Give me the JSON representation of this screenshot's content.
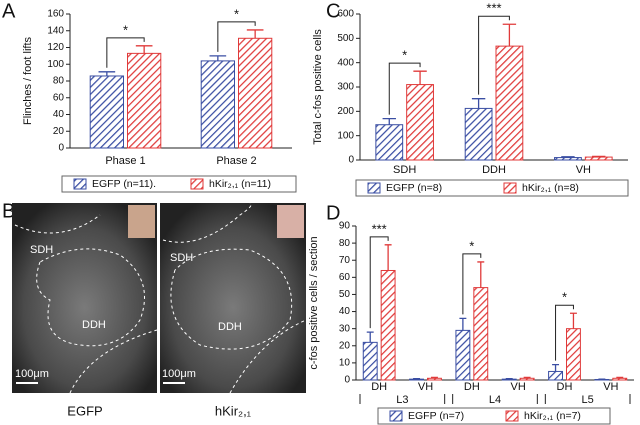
{
  "chart_data": [
    {
      "type": "bar",
      "panel": "A",
      "ylabel": "Flinches / foot lifts",
      "categories": [
        "Phase 1",
        "Phase 2"
      ],
      "series": [
        {
          "name": "EGFP (n=11).",
          "color": "#3a4ea3",
          "values": [
            86,
            104
          ],
          "errors": [
            5,
            6
          ]
        },
        {
          "name": "hKir₂,₁ (n=11)",
          "color": "#e03a3a",
          "values": [
            113,
            131
          ],
          "errors": [
            9,
            10
          ]
        }
      ],
      "significance": [
        "*",
        "*"
      ],
      "ylim": [
        0,
        160
      ],
      "yticks": [
        0,
        20,
        40,
        60,
        80,
        100,
        120,
        140,
        160
      ]
    },
    {
      "type": "bar",
      "panel": "C",
      "ylabel": "Total c-fos positive cells",
      "categories": [
        "SDH",
        "DDH",
        "VH"
      ],
      "series": [
        {
          "name": "EGFP (n=8)",
          "color": "#3a4ea3",
          "values": [
            145,
            212,
            10
          ],
          "errors": [
            25,
            40,
            3
          ]
        },
        {
          "name": "hKir₂,₁ (n=8)",
          "color": "#e03a3a",
          "values": [
            310,
            468,
            12
          ],
          "errors": [
            55,
            90,
            3
          ]
        }
      ],
      "significance": [
        "*",
        "***",
        null
      ],
      "ylim": [
        0,
        600
      ],
      "yticks": [
        0,
        100,
        200,
        300,
        400,
        500,
        600
      ]
    },
    {
      "type": "bar",
      "panel": "D",
      "ylabel": "c-fos positive cells / section",
      "categories": [
        "DH",
        "VH",
        "DH",
        "VH",
        "DH",
        "VH"
      ],
      "groups": [
        "L3",
        "L4",
        "L5"
      ],
      "series": [
        {
          "name": "EGFP (n=7)",
          "color": "#3a4ea3",
          "values": [
            22,
            0.5,
            29,
            0.5,
            5,
            0.3
          ],
          "errors": [
            6,
            0.3,
            7,
            0.3,
            4,
            0.2
          ]
        },
        {
          "name": "hKir₂,₁ (n=7)",
          "color": "#e03a3a",
          "values": [
            64,
            1,
            54,
            1,
            30,
            1
          ],
          "errors": [
            15,
            0.5,
            15,
            0.5,
            9,
            0.5
          ]
        }
      ],
      "significance": [
        "***",
        null,
        "*",
        null,
        "*",
        null
      ],
      "ylim": [
        0,
        90
      ],
      "yticks": [
        0,
        10,
        20,
        30,
        40,
        50,
        60,
        70,
        80,
        90
      ]
    }
  ],
  "micrographs": {
    "panel": "B",
    "images": [
      {
        "label": "EGFP",
        "regions": [
          "SDH",
          "DDH"
        ],
        "scale": "100μm"
      },
      {
        "label": "hKir₂,₁",
        "regions": [
          "SDH",
          "DDH"
        ],
        "scale": "100μm"
      }
    ]
  }
}
